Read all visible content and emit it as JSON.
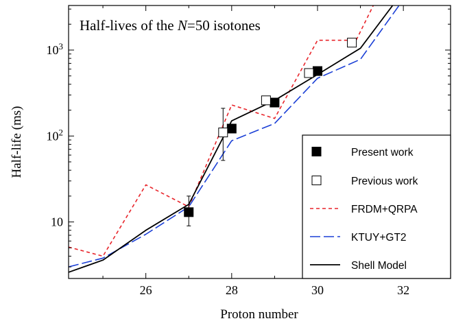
{
  "chart_data": {
    "type": "line",
    "title": "Half-lives of the N=50 isotones",
    "title_parts": {
      "prefix": "Half-lives of the ",
      "italic": "N",
      "suffix": "=50 isotones"
    },
    "xlabel": "Proton number",
    "ylabel": "Half-life (ms)",
    "xlim": [
      24.2,
      33.1
    ],
    "ylim": [
      2.2,
      3300
    ],
    "yscale": "log",
    "x_ticks": [
      26,
      28,
      30,
      32
    ],
    "x_tick_labels": [
      "26",
      "28",
      "30",
      "32"
    ],
    "x_minor_ticks": [
      25,
      27,
      29,
      31
    ],
    "y_ticks": [
      {
        "value": 10,
        "label": "10"
      },
      {
        "value": 100,
        "label_base": "10",
        "label_exp": "2"
      },
      {
        "value": 1000,
        "label_base": "10",
        "label_exp": "3"
      }
    ],
    "grid": false,
    "legend_position": "bottom-right",
    "series": [
      {
        "name": "Present work",
        "kind": "points",
        "marker": "filled-square",
        "color": "#000000",
        "points": [
          {
            "x": 27,
            "y": 13,
            "err_lo": 9,
            "err_hi": 20
          },
          {
            "x": 28,
            "y": 122
          },
          {
            "x": 29,
            "y": 245
          },
          {
            "x": 30,
            "y": 570
          }
        ]
      },
      {
        "name": "Previous work",
        "kind": "points",
        "marker": "open-square",
        "color": "#000000",
        "points": [
          {
            "x": 27.8,
            "y": 110,
            "err_lo": 52,
            "err_hi": 210
          },
          {
            "x": 28.8,
            "y": 260
          },
          {
            "x": 29.8,
            "y": 540
          },
          {
            "x": 30.8,
            "y": 1220
          }
        ]
      },
      {
        "name": "FRDM+QRPA",
        "kind": "line",
        "dash": "short",
        "color": "#e8242a",
        "points": [
          [
            24.2,
            5.1
          ],
          [
            25,
            4.0
          ],
          [
            26,
            27
          ],
          [
            27,
            15
          ],
          [
            28,
            230
          ],
          [
            29,
            160
          ],
          [
            30,
            1300
          ],
          [
            30.9,
            1300
          ],
          [
            31.3,
            3300
          ]
        ]
      },
      {
        "name": "KTUY+GT2",
        "kind": "line",
        "dash": "long",
        "color": "#1a3fd6",
        "points": [
          [
            24.2,
            3.0
          ],
          [
            25,
            3.8
          ],
          [
            26,
            7.2
          ],
          [
            27,
            15
          ],
          [
            28,
            88
          ],
          [
            29,
            140
          ],
          [
            30,
            470
          ],
          [
            31,
            780
          ],
          [
            31.9,
            3300
          ]
        ]
      },
      {
        "name": "Shell Model",
        "kind": "line",
        "dash": "solid",
        "color": "#000000",
        "points": [
          [
            24.2,
            2.6
          ],
          [
            25,
            3.6
          ],
          [
            26,
            8.0
          ],
          [
            27,
            16
          ],
          [
            28,
            150
          ],
          [
            29,
            260
          ],
          [
            30,
            520
          ],
          [
            31,
            1050
          ],
          [
            31.75,
            3300
          ]
        ]
      }
    ]
  }
}
